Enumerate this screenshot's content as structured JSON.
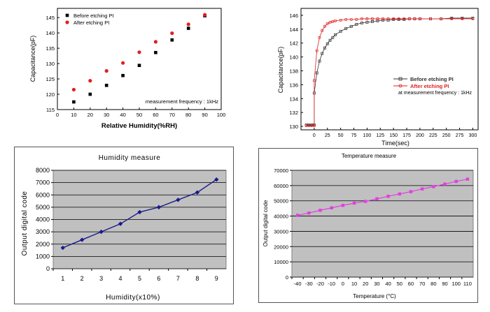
{
  "chart_data": [
    {
      "type": "scatter",
      "xlabel": "Relative Humidity(%RH)",
      "ylabel": "Capacitance(pF)",
      "xlim": [
        0,
        100
      ],
      "ylim": [
        115,
        148
      ],
      "xticks": [
        0,
        10,
        20,
        30,
        40,
        50,
        60,
        70,
        80,
        90,
        100
      ],
      "yticks": [
        115,
        120,
        125,
        130,
        135,
        140,
        145
      ],
      "legend_position": "top-left",
      "annotation": "measurement frequency : 1kHz",
      "series": [
        {
          "name": "Before etching PI",
          "color": "#000000",
          "marker": "square",
          "x": [
            10,
            20,
            30,
            40,
            50,
            60,
            70,
            80,
            90
          ],
          "y": [
            117.5,
            120.0,
            122.9,
            126.1,
            129.4,
            133.6,
            137.7,
            141.5,
            145.6
          ]
        },
        {
          "name": "After etching PI",
          "color": "#e02020",
          "marker": "circle",
          "x": [
            10,
            20,
            30,
            40,
            50,
            60,
            70,
            80,
            90
          ],
          "y": [
            121.5,
            124.4,
            127.6,
            130.2,
            133.7,
            137.1,
            139.9,
            142.8,
            145.9
          ]
        }
      ]
    },
    {
      "type": "line",
      "xlabel": "Time(sec)",
      "ylabel": "Capacitance(pF)",
      "xlim": [
        -25,
        310
      ],
      "ylim": [
        129.5,
        147
      ],
      "xticks": [
        0,
        25,
        50,
        75,
        100,
        125,
        150,
        175,
        200,
        225,
        250,
        275,
        300
      ],
      "yticks": [
        130,
        132,
        134,
        136,
        138,
        140,
        142,
        144,
        146
      ],
      "legend_position": "right",
      "annotation": "at measurement frequency : 1kHz",
      "series": [
        {
          "name": "Before etching PI",
          "color": "#303030",
          "marker": "square",
          "x": [
            -15,
            -10,
            -5,
            0,
            0,
            5,
            10,
            15,
            20,
            25,
            30,
            35,
            40,
            50,
            60,
            70,
            80,
            90,
            100,
            110,
            120,
            130,
            140,
            150,
            160,
            170,
            180,
            190,
            200,
            220,
            240,
            260,
            280,
            300
          ],
          "y": [
            130.2,
            130.2,
            130.2,
            130.2,
            134.8,
            137.7,
            139.4,
            140.5,
            141.3,
            141.9,
            142.4,
            142.8,
            143.2,
            143.7,
            144.1,
            144.4,
            144.7,
            144.9,
            145.0,
            145.1,
            145.2,
            145.3,
            145.3,
            145.4,
            145.4,
            145.4,
            145.5,
            145.5,
            145.5,
            145.5,
            145.5,
            145.6,
            145.6,
            145.6
          ]
        },
        {
          "name": "After etching PI",
          "color": "#e02020",
          "marker": "circle",
          "x": [
            -15,
            -10,
            -5,
            0,
            0,
            5,
            10,
            15,
            20,
            25,
            30,
            35,
            40,
            50,
            60,
            70,
            80,
            90,
            100,
            110,
            120,
            130,
            140,
            150,
            160,
            170,
            180,
            190,
            200,
            220,
            240,
            260,
            280,
            300
          ],
          "y": [
            130.1,
            130.1,
            130.1,
            130.1,
            136.6,
            140.9,
            142.8,
            143.8,
            144.4,
            144.8,
            145.0,
            145.1,
            145.2,
            145.3,
            145.4,
            145.4,
            145.4,
            145.5,
            145.5,
            145.5,
            145.5,
            145.5,
            145.5,
            145.5,
            145.5,
            145.5,
            145.5,
            145.5,
            145.5,
            145.5,
            145.5,
            145.5,
            145.5,
            145.5
          ]
        }
      ]
    },
    {
      "type": "line",
      "title": "Humidity measure",
      "xlabel": "Humidity(x10%)",
      "ylabel": "Output digital code",
      "ylim": [
        0,
        8000
      ],
      "grid": true,
      "plot_background": "#c0c0c0",
      "categories": [
        "1",
        "2",
        "3",
        "4",
        "5",
        "6",
        "7",
        "8",
        "9"
      ],
      "yticks": [
        0,
        1000,
        2000,
        3000,
        4000,
        5000,
        6000,
        7000,
        8000
      ],
      "series": [
        {
          "color": "#1a1a8c",
          "marker": "diamond",
          "values": [
            1700,
            2350,
            3000,
            3650,
            4600,
            5000,
            5600,
            6200,
            7250
          ]
        }
      ]
    },
    {
      "type": "line",
      "title": "Temperature measure",
      "xlabel": "Temperature (°C)",
      "ylabel": "Output digital code",
      "ylim": [
        0,
        70000
      ],
      "grid": true,
      "plot_background": "#c0c0c0",
      "categories": [
        "-40",
        "-30",
        "-20",
        "-10",
        "0",
        "10",
        "20",
        "30",
        "40",
        "50",
        "60",
        "70",
        "80",
        "90",
        "100",
        "110"
      ],
      "yticks": [
        0,
        10000,
        20000,
        30000,
        40000,
        50000,
        60000,
        70000
      ],
      "series": [
        {
          "color": "#e040e0",
          "marker": "square",
          "values": [
            40500,
            42000,
            43800,
            45400,
            47000,
            48500,
            49600,
            51300,
            53000,
            54500,
            56000,
            57800,
            59300,
            61000,
            62700,
            64200
          ]
        }
      ]
    }
  ]
}
